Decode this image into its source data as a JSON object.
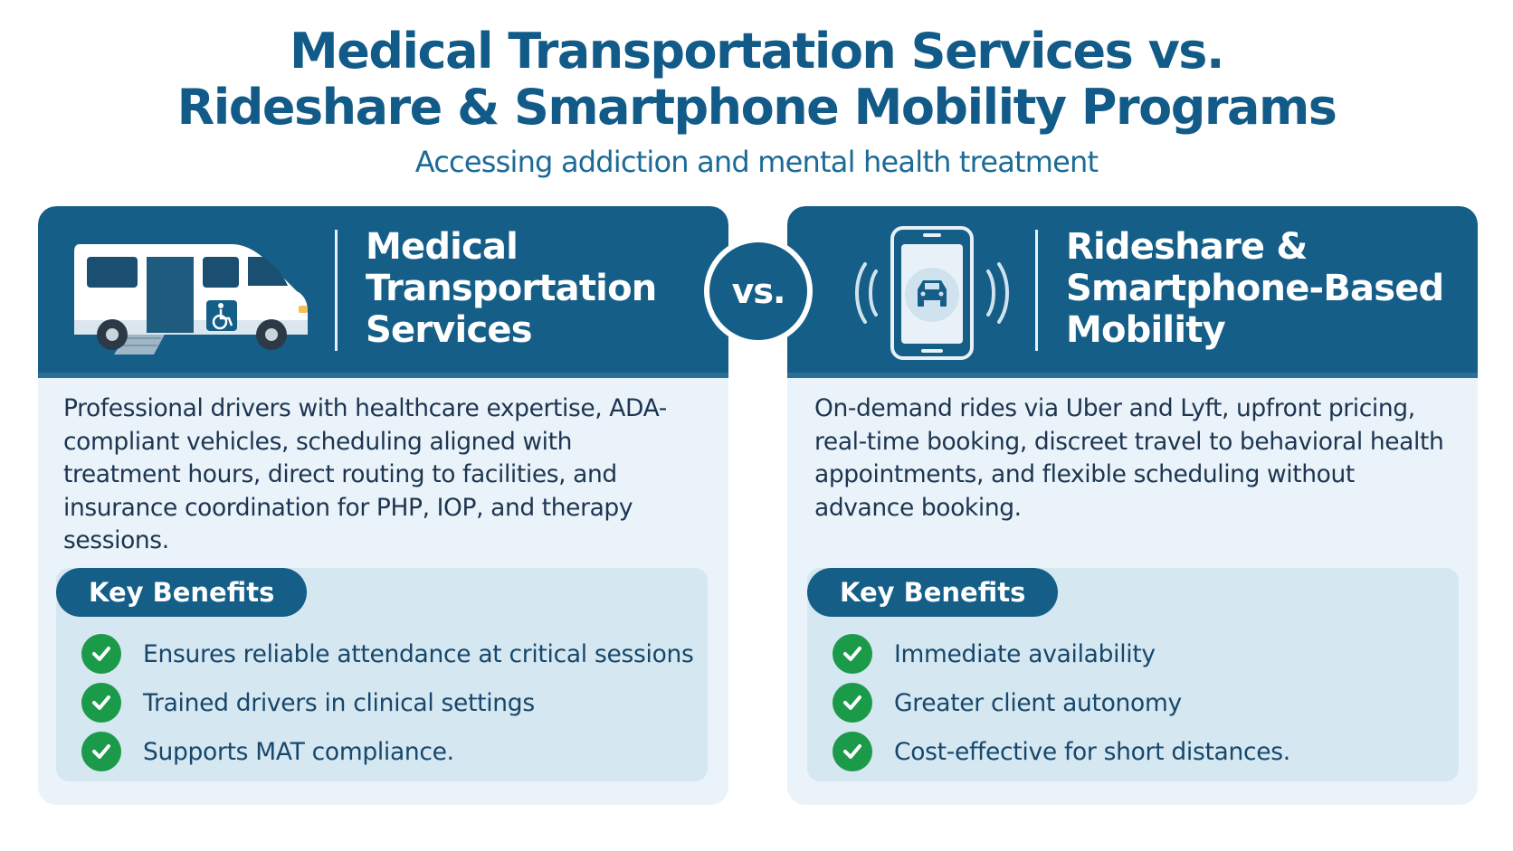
{
  "title": {
    "line1": "Medical Transportation Services vs.",
    "line2": "Rideshare & Smartphone Mobility Programs"
  },
  "subtitle": "Accessing addiction and mental health treatment",
  "vs_label": "vs.",
  "colors": {
    "primary": "#145e88",
    "card_bg": "#eaf3fa",
    "benefit_bg": "#d5e7f1",
    "check_green": "#1b9a4a"
  },
  "left_card": {
    "icon": "wheelchair-van-icon",
    "title_lines": [
      "Medical",
      "Transportation",
      "Services"
    ],
    "description": "Professional drivers with healthcare expertise, ADA-compliant vehicles, scheduling aligned with treatment hours, direct routing to facilities, and insurance coordination for PHP, IOP, and therapy sessions.",
    "benefits_label": "Key Benefits",
    "benefits": [
      "Ensures reliable attendance at critical sessions",
      "Trained drivers in clinical settings",
      "Supports MAT compliance."
    ]
  },
  "right_card": {
    "icon": "smartphone-car-icon",
    "title_lines": [
      "Rideshare &",
      "Smartphone-Based",
      "Mobility"
    ],
    "description": "On-demand rides via Uber and Lyft, upfront pricing, real-time booking, discreet travel to behavioral health appointments, and flexible scheduling without advance booking.",
    "benefits_label": "Key Benefits",
    "benefits": [
      "Immediate availability",
      "Greater client autonomy",
      "Cost-effective for short distances."
    ]
  }
}
